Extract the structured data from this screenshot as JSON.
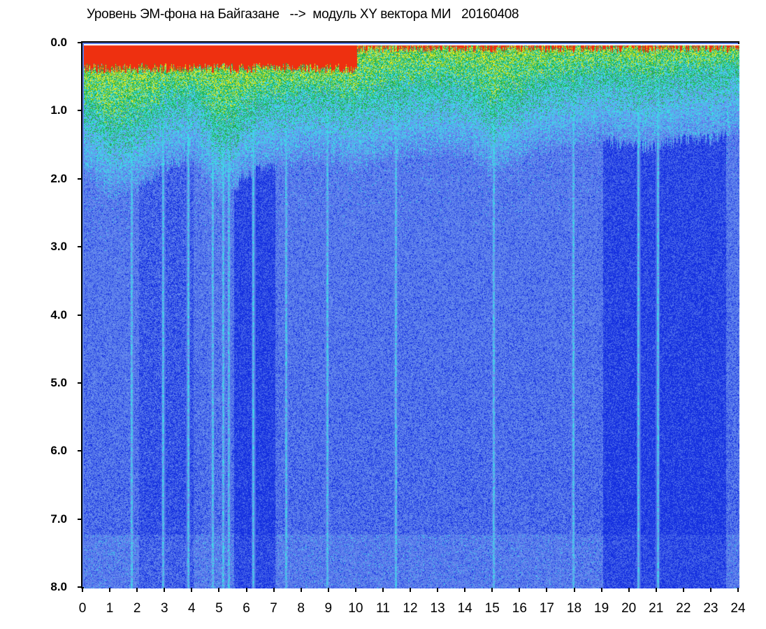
{
  "chart_data": {
    "type": "heatmap",
    "title": "Уровень ЭМ-фона на Байгазане   -->  модуль XY вектора МИ   20160408",
    "xlabel": "",
    "ylabel": "",
    "x_ticks": [
      "0",
      "1",
      "2",
      "3",
      "4",
      "5",
      "6",
      "7",
      "8",
      "9",
      "10",
      "11",
      "12",
      "13",
      "14",
      "15",
      "16",
      "17",
      "18",
      "19",
      "20",
      "21",
      "22",
      "23",
      "24"
    ],
    "y_ticks": [
      "0.0",
      "1.0",
      "2.0",
      "3.0",
      "4.0",
      "5.0",
      "6.0",
      "7.0",
      "8.0"
    ],
    "xlim": [
      0,
      24
    ],
    "ylim": [
      0,
      8
    ],
    "y_inverted": true,
    "colormap": [
      "#1530e0",
      "#4a6ae8",
      "#6a90ee",
      "#3fd8e8",
      "#22b24a",
      "#e8e820",
      "#ee3010"
    ],
    "intensity_profile": {
      "description_points_x": [
        0,
        1,
        2,
        3,
        4,
        5,
        6,
        7,
        8,
        9,
        10,
        11,
        12,
        13,
        14,
        15,
        16,
        17,
        18,
        19,
        20,
        21,
        22,
        23,
        24
      ],
      "surface_band_depth": [
        0.9,
        1.2,
        1.1,
        0.8,
        0.7,
        1.3,
        0.9,
        0.8,
        0.7,
        0.7,
        0.8,
        0.7,
        0.6,
        0.6,
        0.6,
        0.9,
        0.7,
        0.5,
        0.5,
        0.4,
        0.5,
        0.5,
        0.4,
        0.4,
        0.3
      ]
    },
    "bright_vertical_streaks_x": [
      1.75,
      2.9,
      3.8,
      4.7,
      5.1,
      5.3,
      6.2,
      7.4,
      8.9,
      11.4,
      15.0,
      17.9,
      20.3,
      21.0
    ],
    "grid": false,
    "legend": "none"
  }
}
